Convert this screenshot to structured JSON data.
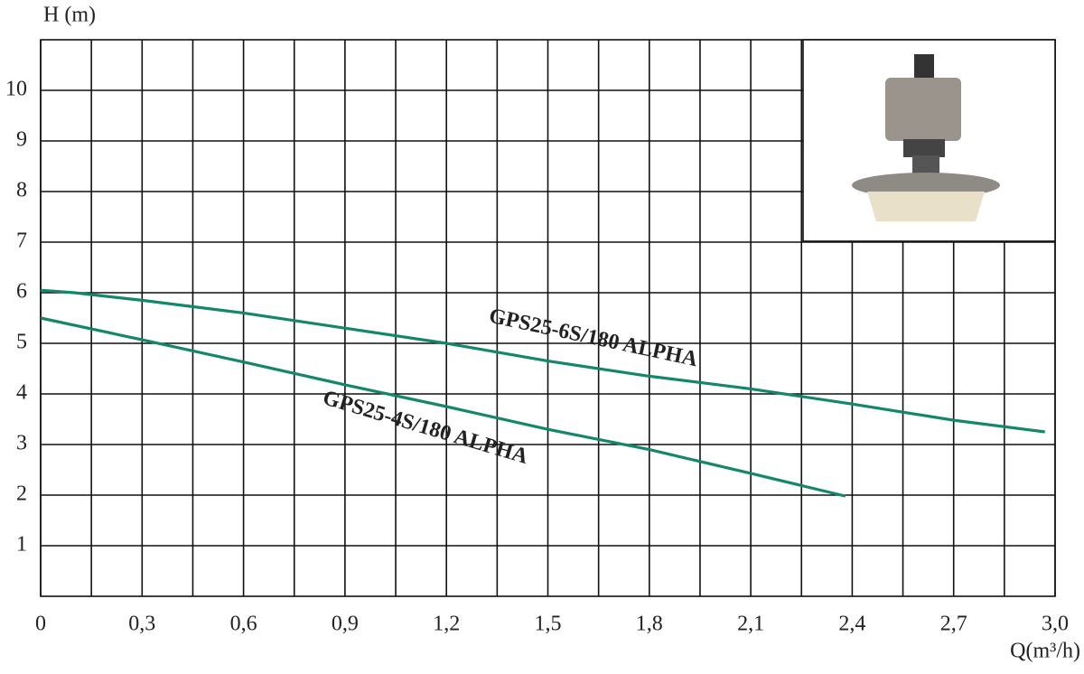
{
  "chart_data": {
    "type": "line",
    "y_label": "H (m)",
    "x_label": "Q(m³/h)",
    "xlim": [
      0,
      3.0
    ],
    "ylim": [
      0,
      11
    ],
    "xticks": [
      0,
      {
        "value": 0.3,
        "label": "0,3"
      },
      {
        "value": 0.6,
        "label": "0,6"
      },
      {
        "value": 0.9,
        "label": "0,9"
      },
      {
        "value": 1.2,
        "label": "1,2"
      },
      {
        "value": 1.5,
        "label": "1,5"
      },
      {
        "value": 1.8,
        "label": "1,8"
      },
      {
        "value": 2.1,
        "label": "2,1"
      },
      {
        "value": 2.4,
        "label": "2,4"
      },
      {
        "value": 2.7,
        "label": "2,7"
      },
      {
        "value": 3.0,
        "label": "3,0"
      }
    ],
    "xminor": [
      0.15,
      0.45,
      0.75,
      1.05,
      1.35,
      1.65,
      1.95,
      2.25,
      2.55,
      2.85
    ],
    "yticks": [
      1,
      2,
      3,
      4,
      5,
      6,
      7,
      8,
      9,
      10
    ],
    "grid": true,
    "series": [
      {
        "name": "GPS25-6S/180 ALPHA",
        "color": "#14876a",
        "x": [
          0,
          0.1,
          0.3,
          0.6,
          0.9,
          1.2,
          1.5,
          1.8,
          2.1,
          2.4,
          2.7,
          2.97
        ],
        "values": [
          6.05,
          6.0,
          5.85,
          5.6,
          5.3,
          5.0,
          4.65,
          4.35,
          4.1,
          3.8,
          3.48,
          3.25
        ]
      },
      {
        "name": "GPS25-4S/180 ALPHA",
        "color": "#14876a",
        "x": [
          0,
          0.3,
          0.6,
          0.9,
          1.2,
          1.5,
          1.8,
          2.1,
          2.38
        ],
        "values": [
          5.5,
          5.07,
          4.63,
          4.18,
          3.75,
          3.3,
          2.9,
          2.43,
          1.98
        ]
      }
    ]
  }
}
